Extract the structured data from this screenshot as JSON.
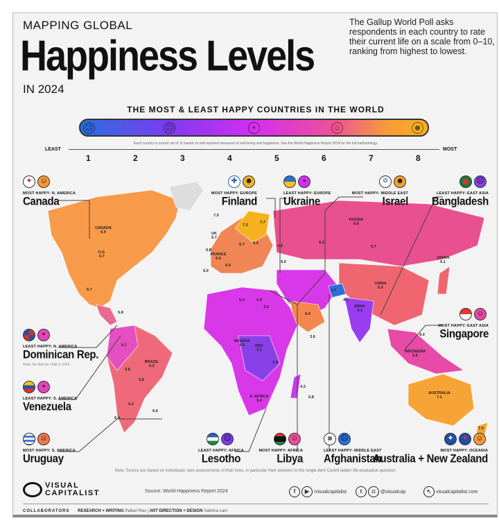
{
  "header": {
    "kicker": "MAPPING GLOBAL",
    "title": "Happiness Levels",
    "year": "IN 2024",
    "intro": "The Gallup World Poll asks respondents in each country to rate their current life on a scale from 0–10, ranking from highest to lowest."
  },
  "legend": {
    "subtitle": "THE MOST & LEAST HAPPY COUNTRIES IN THE WORLD",
    "methodology": "Each country is scored out of 10 based on self-reported measures of well-being and happiness. See the World Happiness Report 2024 for the full methodology.",
    "least": "LEAST",
    "most": "MOST",
    "ticks": [
      "1",
      "2",
      "3",
      "4",
      "5",
      "6",
      "7",
      "8"
    ],
    "colors": [
      "#2a6fe0",
      "#7b3cf0",
      "#d52ef0",
      "#ee4f9a",
      "#f79a3a",
      "#f6b21e"
    ]
  },
  "callouts": [
    {
      "label": "MOST HAPPY: N. AMERICA",
      "name": "Canada",
      "flag": "canada-flag",
      "face": "happy"
    },
    {
      "label": "MOST HAPPY: EUROPE",
      "name": "Finland",
      "flag": "finland-flag",
      "face": "very-happy"
    },
    {
      "label": "LEAST HAPPY: EUROPE",
      "name": "Ukraine",
      "flag": "ukraine-flag",
      "face": "neutral"
    },
    {
      "label": "MOST HAPPY: MIDDLE EAST",
      "name": "Israel",
      "flag": "israel-flag",
      "face": "very-happy"
    },
    {
      "label": "LEAST HAPPY: EAST ASIA",
      "name": "Bangladesh",
      "flag": "bangladesh-flag",
      "face": "sad"
    },
    {
      "label": "LEAST HAPPY: N. AMERICA",
      "name": "Dominican Rep.",
      "flag": "dominican-flag",
      "face": "neutral",
      "note": "Note: No data for Haiti in 2024"
    },
    {
      "label": "LEAST HAPPY: S. AMERICA",
      "name": "Venezuela",
      "flag": "venezuela-flag",
      "face": "neutral"
    },
    {
      "label": "MOST HAPPY: S. AMERICA",
      "name": "Uruguay",
      "flag": "uruguay-flag",
      "face": "happy"
    },
    {
      "label": "MOST HAPPY: EAST ASIA",
      "name": "Singapore",
      "flag": "singapore-flag",
      "face": "happy"
    },
    {
      "label": "LEAST HAPPY: AFRICA",
      "name": "Lesotho",
      "flag": "lesotho-flag",
      "face": "sad"
    },
    {
      "label": "MOST HAPPY: AFRICA",
      "name": "Libya",
      "flag": "libya-flag",
      "face": "happy"
    },
    {
      "label": "LEAST HAPPY: MIDDLE EAST",
      "name": "Afghanistan",
      "flag": "afghanistan-flag",
      "face": "very-sad"
    },
    {
      "label": "MOST HAPPY: OCEANIA",
      "name": "Australia + New Zealand",
      "flag": "australia-nz-flags",
      "face": "happy"
    }
  ],
  "map_labels": [
    {
      "name": "CANADA",
      "value": "6.9"
    },
    {
      "name": "U.S.",
      "value": "6.7"
    },
    {
      "name": "",
      "value": "6.7"
    },
    {
      "name": "",
      "value": "5.8"
    },
    {
      "name": "BRAZIL",
      "value": "6.3"
    },
    {
      "name": "",
      "value": "5.7"
    },
    {
      "name": "",
      "value": "5.8"
    },
    {
      "name": "",
      "value": "5.8"
    },
    {
      "name": "",
      "value": "6.2"
    },
    {
      "name": "",
      "value": "6.4"
    },
    {
      "name": "",
      "value": "6.6"
    },
    {
      "name": "",
      "value": "7.5"
    },
    {
      "name": "UK",
      "value": "6.7"
    },
    {
      "name": "",
      "value": "6.8"
    },
    {
      "name": "FRANCE",
      "value": "6.6"
    },
    {
      "name": "",
      "value": "6.0"
    },
    {
      "name": "",
      "value": "6.4"
    },
    {
      "name": "",
      "value": "7.7"
    },
    {
      "name": "",
      "value": "7.3"
    },
    {
      "name": "",
      "value": "6.7"
    },
    {
      "name": "",
      "value": "6.4"
    },
    {
      "name": "",
      "value": "4.9"
    },
    {
      "name": "",
      "value": "5.0"
    },
    {
      "name": "RUSSIA",
      "value": "5.8"
    },
    {
      "name": "",
      "value": "6.2"
    },
    {
      "name": "",
      "value": "5.7"
    },
    {
      "name": "CHINA",
      "value": "6.0"
    },
    {
      "name": "JAPAN",
      "value": "6.1"
    },
    {
      "name": "INDIA",
      "value": "4.1"
    },
    {
      "name": "",
      "value": "1.7"
    },
    {
      "name": "",
      "value": "4.7"
    },
    {
      "name": "",
      "value": "6.4"
    },
    {
      "name": "",
      "value": "3.6"
    },
    {
      "name": "",
      "value": "5.4"
    },
    {
      "name": "",
      "value": "5.9"
    },
    {
      "name": "",
      "value": "4.0"
    },
    {
      "name": "NIGERIA",
      "value": "4.9"
    },
    {
      "name": "DRC",
      "value": "3.3"
    },
    {
      "name": "",
      "value": "3.9"
    },
    {
      "name": "S. AFRICA",
      "value": "5.4"
    },
    {
      "name": "",
      "value": "4.2"
    },
    {
      "name": "",
      "value": "5.8"
    },
    {
      "name": "",
      "value": "6.0"
    },
    {
      "name": "INDONESIA",
      "value": "5.6"
    },
    {
      "name": "AUSTRALIA",
      "value": "7.1"
    },
    {
      "name": "",
      "value": "7.0"
    }
  ],
  "footer": {
    "note": "Note: Scores are based on individuals' own assessments of their lives, in particular their answers to the single-item Cantril ladder life-evaluation question.",
    "logo_line1": "VISUAL",
    "logo_line2": "CAPITALIST",
    "source": "Source: World Happiness Report 2024",
    "facebook_youtube": "/visualcapitalist",
    "twitter_instagram": "@visualcap",
    "website": "visualcapitalist.com",
    "collaborators": "COLLABORATORS",
    "research_label": "RESEARCH + WRITING",
    "research_name": "Pallavi Rao",
    "design_label": "ART DIRECTION + DESIGN",
    "design_name": "Sabrina Lam"
  }
}
